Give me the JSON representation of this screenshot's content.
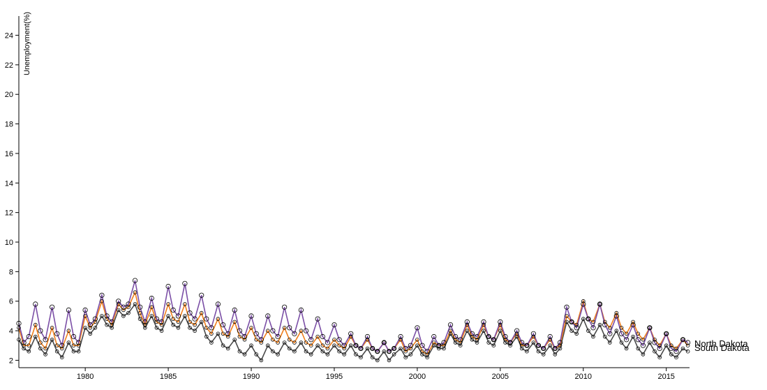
{
  "chart_data": {
    "type": "line",
    "ylabel": "Unemployment(%)",
    "xlabel": "",
    "xlim": [
      1976.0,
      2016.4
    ],
    "ylim": [
      1.5,
      25.3
    ],
    "x_ticks": [
      1980,
      1985,
      1990,
      1995,
      2000,
      2005,
      2010,
      2015
    ],
    "y_ticks": [
      2,
      4,
      6,
      8,
      10,
      12,
      14,
      16,
      18,
      20,
      22,
      24
    ],
    "grid": false,
    "legend": "labels at line ends",
    "point_series": "North Dakota",
    "series": [
      {
        "name": "North Dakota",
        "color": "#7b4fa6",
        "x": [
          1976.0,
          1976.3,
          1976.6,
          1977.0,
          1977.3,
          1977.6,
          1978.0,
          1978.3,
          1978.6,
          1979.0,
          1979.3,
          1979.6,
          1980.0,
          1980.3,
          1980.6,
          1981.0,
          1981.3,
          1981.6,
          1982.0,
          1982.3,
          1982.6,
          1983.0,
          1983.3,
          1983.6,
          1984.0,
          1984.3,
          1984.6,
          1985.0,
          1985.3,
          1985.6,
          1986.0,
          1986.3,
          1986.6,
          1987.0,
          1987.3,
          1987.6,
          1988.0,
          1988.3,
          1988.6,
          1989.0,
          1989.3,
          1989.6,
          1990.0,
          1990.3,
          1990.6,
          1991.0,
          1991.3,
          1991.6,
          1992.0,
          1992.3,
          1992.6,
          1993.0,
          1993.3,
          1993.6,
          1994.0,
          1994.3,
          1994.6,
          1995.0,
          1995.3,
          1995.6,
          1996.0,
          1996.3,
          1996.6,
          1997.0,
          1997.3,
          1997.6,
          1998.0,
          1998.3,
          1998.6,
          1999.0,
          1999.3,
          1999.6,
          2000.0,
          2000.3,
          2000.6,
          2001.0,
          2001.3,
          2001.6,
          2002.0,
          2002.3,
          2002.6,
          2003.0,
          2003.3,
          2003.6,
          2004.0,
          2004.3,
          2004.6,
          2005.0,
          2005.3,
          2005.6,
          2006.0,
          2006.3,
          2006.6,
          2007.0,
          2007.3,
          2007.6,
          2008.0,
          2008.3,
          2008.6,
          2009.0,
          2009.3,
          2009.6,
          2010.0,
          2010.3,
          2010.6,
          2011.0,
          2011.3,
          2011.6,
          2012.0,
          2012.3,
          2012.6,
          2013.0,
          2013.3,
          2013.6,
          2014.0,
          2014.3,
          2014.6,
          2015.0,
          2015.3,
          2015.6,
          2016.0,
          2016.3
        ],
        "values": [
          4.5,
          3.2,
          3.6,
          5.8,
          4.0,
          3.4,
          5.6,
          3.8,
          3.0,
          5.4,
          3.6,
          3.2,
          5.4,
          4.4,
          4.8,
          6.4,
          5.0,
          4.6,
          6.0,
          5.6,
          5.8,
          7.4,
          5.6,
          4.6,
          6.2,
          4.8,
          4.6,
          7.0,
          5.4,
          5.0,
          7.2,
          5.2,
          4.8,
          6.4,
          4.8,
          4.2,
          5.8,
          4.4,
          3.8,
          5.4,
          4.0,
          3.6,
          5.0,
          3.8,
          3.4,
          5.0,
          4.0,
          3.6,
          5.6,
          4.2,
          3.8,
          5.4,
          4.0,
          3.4,
          4.8,
          3.6,
          3.2,
          4.4,
          3.4,
          3.0,
          3.8,
          3.0,
          2.8,
          3.6,
          2.8,
          2.6,
          3.2,
          2.6,
          2.8,
          3.6,
          2.8,
          3.0,
          4.2,
          3.0,
          2.6,
          3.6,
          3.0,
          3.2,
          4.4,
          3.6,
          3.4,
          4.6,
          3.8,
          3.6,
          4.6,
          3.6,
          3.4,
          4.6,
          3.6,
          3.2,
          4.0,
          3.2,
          3.0,
          3.8,
          3.0,
          2.8,
          3.6,
          2.8,
          3.2,
          5.6,
          4.6,
          4.2,
          5.8,
          4.8,
          4.2,
          5.8,
          4.4,
          3.8,
          5.0,
          3.8,
          3.4,
          4.4,
          3.4,
          3.0,
          4.2,
          3.2,
          2.8,
          3.8,
          2.8,
          2.6,
          3.4,
          3.2
        ]
      },
      {
        "name": "South Dakota",
        "color": "#f07f1c",
        "x": [
          1976.0,
          1976.3,
          1976.6,
          1977.0,
          1977.3,
          1977.6,
          1978.0,
          1978.3,
          1978.6,
          1979.0,
          1979.3,
          1979.6,
          1980.0,
          1980.3,
          1980.6,
          1981.0,
          1981.3,
          1981.6,
          1982.0,
          1982.3,
          1982.6,
          1983.0,
          1983.3,
          1983.6,
          1984.0,
          1984.3,
          1984.6,
          1985.0,
          1985.3,
          1985.6,
          1986.0,
          1986.3,
          1986.6,
          1987.0,
          1987.3,
          1987.6,
          1988.0,
          1988.3,
          1988.6,
          1989.0,
          1989.3,
          1989.6,
          1990.0,
          1990.3,
          1990.6,
          1991.0,
          1991.3,
          1991.6,
          1992.0,
          1992.3,
          1992.6,
          1993.0,
          1993.3,
          1993.6,
          1994.0,
          1994.3,
          1994.6,
          1995.0,
          1995.3,
          1995.6,
          1996.0,
          1996.3,
          1996.6,
          1997.0,
          1997.3,
          1997.6,
          1998.0,
          1998.3,
          1998.6,
          1999.0,
          1999.3,
          1999.6,
          2000.0,
          2000.3,
          2000.6,
          2001.0,
          2001.3,
          2001.6,
          2002.0,
          2002.3,
          2002.6,
          2003.0,
          2003.3,
          2003.6,
          2004.0,
          2004.3,
          2004.6,
          2005.0,
          2005.3,
          2005.6,
          2006.0,
          2006.3,
          2006.6,
          2007.0,
          2007.3,
          2007.6,
          2008.0,
          2008.3,
          2008.6,
          2009.0,
          2009.3,
          2009.6,
          2010.0,
          2010.3,
          2010.6,
          2011.0,
          2011.3,
          2011.6,
          2012.0,
          2012.3,
          2012.6,
          2013.0,
          2013.3,
          2013.6,
          2014.0,
          2014.3,
          2014.6,
          2015.0,
          2015.3,
          2015.6,
          2016.0,
          2016.3
        ],
        "values": [
          4.2,
          3.0,
          3.0,
          4.4,
          3.2,
          2.8,
          4.2,
          3.0,
          2.8,
          4.0,
          3.0,
          3.0,
          5.0,
          4.2,
          4.6,
          6.0,
          4.8,
          4.4,
          5.8,
          5.4,
          5.6,
          6.6,
          5.2,
          4.4,
          5.6,
          4.6,
          4.4,
          5.8,
          4.8,
          4.6,
          5.8,
          4.6,
          4.4,
          5.2,
          4.2,
          3.8,
          4.8,
          3.8,
          3.6,
          4.6,
          3.6,
          3.4,
          4.2,
          3.4,
          3.2,
          4.0,
          3.4,
          3.2,
          4.2,
          3.4,
          3.2,
          4.0,
          3.2,
          3.0,
          3.6,
          3.0,
          2.8,
          3.4,
          3.0,
          2.8,
          3.6,
          3.0,
          2.8,
          3.4,
          2.8,
          2.6,
          3.2,
          2.6,
          2.8,
          3.4,
          2.6,
          2.8,
          3.4,
          2.6,
          2.4,
          3.2,
          3.0,
          3.0,
          4.0,
          3.4,
          3.2,
          4.4,
          3.6,
          3.4,
          4.4,
          3.6,
          3.4,
          4.4,
          3.4,
          3.2,
          3.8,
          3.0,
          3.0,
          3.6,
          3.0,
          2.8,
          3.4,
          2.8,
          3.0,
          5.0,
          4.6,
          4.4,
          6.0,
          4.8,
          4.6,
          5.8,
          4.6,
          4.2,
          5.2,
          4.2,
          3.8,
          4.6,
          3.8,
          3.4,
          4.2,
          3.4,
          3.0,
          3.8,
          3.0,
          2.8,
          3.4,
          3.0
        ]
      },
      {
        "name": "",
        "color": "#4a4a4a",
        "x": [
          1976.0,
          1976.3,
          1976.6,
          1977.0,
          1977.3,
          1977.6,
          1978.0,
          1978.3,
          1978.6,
          1979.0,
          1979.3,
          1979.6,
          1980.0,
          1980.3,
          1980.6,
          1981.0,
          1981.3,
          1981.6,
          1982.0,
          1982.3,
          1982.6,
          1983.0,
          1983.3,
          1983.6,
          1984.0,
          1984.3,
          1984.6,
          1985.0,
          1985.3,
          1985.6,
          1986.0,
          1986.3,
          1986.6,
          1987.0,
          1987.3,
          1987.6,
          1988.0,
          1988.3,
          1988.6,
          1989.0,
          1989.3,
          1989.6,
          1990.0,
          1990.3,
          1990.6,
          1991.0,
          1991.3,
          1991.6,
          1992.0,
          1992.3,
          1992.6,
          1993.0,
          1993.3,
          1993.6,
          1994.0,
          1994.3,
          1994.6,
          1995.0,
          1995.3,
          1995.6,
          1996.0,
          1996.3,
          1996.6,
          1997.0,
          1997.3,
          1997.6,
          1998.0,
          1998.3,
          1998.6,
          1999.0,
          1999.3,
          1999.6,
          2000.0,
          2000.3,
          2000.6,
          2001.0,
          2001.3,
          2001.6,
          2002.0,
          2002.3,
          2002.6,
          2003.0,
          2003.3,
          2003.6,
          2004.0,
          2004.3,
          2004.6,
          2005.0,
          2005.3,
          2005.6,
          2006.0,
          2006.3,
          2006.6,
          2007.0,
          2007.3,
          2007.6,
          2008.0,
          2008.3,
          2008.6,
          2009.0,
          2009.3,
          2009.6,
          2010.0,
          2010.3,
          2010.6,
          2011.0,
          2011.3,
          2011.6,
          2012.0,
          2012.3,
          2012.6,
          2013.0,
          2013.3,
          2013.6,
          2014.0,
          2014.3,
          2014.6,
          2015.0,
          2015.3,
          2015.6,
          2016.0,
          2016.3
        ],
        "values": [
          3.4,
          2.8,
          2.6,
          3.6,
          2.8,
          2.4,
          3.4,
          2.6,
          2.2,
          3.2,
          2.6,
          2.6,
          4.2,
          3.8,
          4.2,
          5.0,
          4.4,
          4.2,
          5.4,
          5.0,
          5.2,
          5.8,
          4.8,
          4.2,
          5.0,
          4.2,
          4.0,
          5.0,
          4.4,
          4.2,
          5.0,
          4.2,
          4.0,
          4.6,
          3.6,
          3.2,
          3.8,
          3.0,
          2.8,
          3.4,
          2.6,
          2.4,
          3.0,
          2.4,
          2.0,
          3.0,
          2.6,
          2.4,
          3.2,
          2.8,
          2.6,
          3.2,
          2.6,
          2.4,
          3.0,
          2.6,
          2.4,
          3.0,
          2.6,
          2.4,
          3.0,
          2.4,
          2.2,
          2.8,
          2.2,
          2.0,
          2.6,
          2.0,
          2.4,
          2.8,
          2.2,
          2.4,
          3.0,
          2.4,
          2.2,
          3.0,
          2.8,
          2.8,
          3.8,
          3.2,
          3.0,
          4.0,
          3.4,
          3.2,
          4.0,
          3.2,
          3.0,
          4.0,
          3.2,
          3.0,
          3.6,
          2.8,
          2.6,
          3.2,
          2.6,
          2.4,
          3.0,
          2.4,
          2.8,
          4.6,
          4.0,
          3.8,
          4.8,
          4.0,
          3.6,
          4.4,
          3.6,
          3.2,
          4.0,
          3.2,
          2.8,
          3.6,
          2.8,
          2.4,
          3.2,
          2.6,
          2.2,
          3.0,
          2.4,
          2.2,
          2.8,
          2.6
        ]
      }
    ]
  },
  "end_labels": [
    "North Dakota",
    "South Dakota"
  ]
}
